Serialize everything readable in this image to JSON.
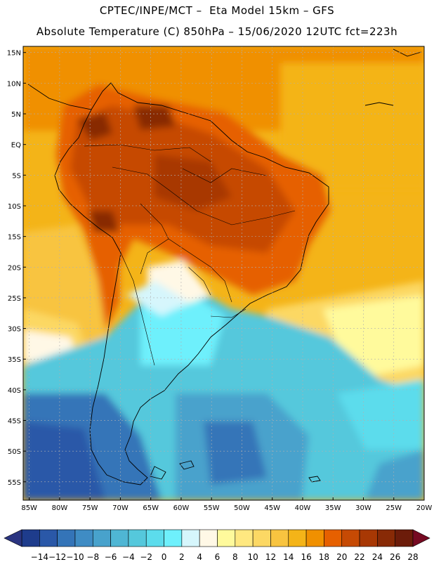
{
  "header": {
    "line1": "CPTEC/INPE/MCT –  Eta Model 15km – GFS",
    "line2": "Absolute Temperature (C) 850hPa – 15/06/2020 12UTC fct=223h"
  },
  "map": {
    "lat_labels": [
      "15N",
      "10N",
      "5N",
      "EQ",
      "5S",
      "10S",
      "15S",
      "20S",
      "25S",
      "30S",
      "35S",
      "40S",
      "45S",
      "50S",
      "55S"
    ],
    "lon_labels": [
      "85W",
      "80W",
      "75W",
      "70W",
      "65W",
      "60W",
      "55W",
      "50W",
      "45W",
      "40W",
      "35W",
      "30W",
      "25W",
      "20W"
    ],
    "lon_range": [
      -86,
      -20
    ],
    "lat_range": [
      16,
      -58
    ]
  },
  "colorbar": {
    "labels": [
      "-14",
      "-12",
      "-10",
      "-8",
      "-6",
      "-4",
      "-2",
      "0",
      "2",
      "4",
      "6",
      "8",
      "10",
      "12",
      "14",
      "16",
      "18",
      "20",
      "22",
      "24",
      "26",
      "28"
    ],
    "colors": [
      "#1e3c8c",
      "#2a58a8",
      "#3474b8",
      "#3f8cc4",
      "#48a2cc",
      "#4fb6d4",
      "#55c8dc",
      "#5cdcec",
      "#6ef0fc",
      "#d6f6fc",
      "#fff8e6",
      "#fffa9c",
      "#ffe880",
      "#fcd864",
      "#f8c440",
      "#f4b418",
      "#f09000",
      "#e66000",
      "#c64a04",
      "#a83804",
      "#882a06",
      "#6c1c0a"
    ],
    "low_color": "#2a3480",
    "high_color": "#760a22"
  },
  "icons": [
    "colorbar-low-arrow",
    "colorbar-high-arrow"
  ]
}
